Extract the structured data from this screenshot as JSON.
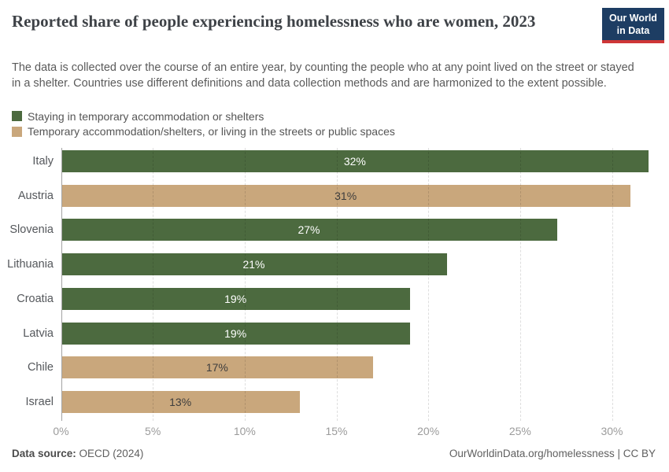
{
  "header": {
    "logo": {
      "line1": "Our World",
      "line2": "in Data"
    }
  },
  "chart_data": {
    "type": "bar",
    "orientation": "horizontal",
    "title": "Reported share of people experiencing homelessness who are women, 2023",
    "subtitle": "The data is collected over the course of an entire year, by counting the people who at any point lived on the street or stayed in a shelter. Countries use different definitions and data collection methods and are harmonized to the extent possible.",
    "unit": "%",
    "legend_position": "top-left",
    "legend": [
      {
        "label": "Staying in temporary accommodation or shelters",
        "color": "#4C6A3F",
        "value_label_color": "#FFFFFF"
      },
      {
        "label": "Temporary accommodation/shelters, or living in the streets or public spaces",
        "color": "#C9A77C",
        "value_label_color": "#3D3D3D"
      }
    ],
    "bars": [
      {
        "country": "Italy",
        "value": 32,
        "label": "32%",
        "series": 0
      },
      {
        "country": "Austria",
        "value": 31,
        "label": "31%",
        "series": 1
      },
      {
        "country": "Slovenia",
        "value": 27,
        "label": "27%",
        "series": 0
      },
      {
        "country": "Lithuania",
        "value": 21,
        "label": "21%",
        "series": 0
      },
      {
        "country": "Croatia",
        "value": 19,
        "label": "19%",
        "series": 0
      },
      {
        "country": "Latvia",
        "value": 19,
        "label": "19%",
        "series": 0
      },
      {
        "country": "Chile",
        "value": 17,
        "label": "17%",
        "series": 1
      },
      {
        "country": "Israel",
        "value": 13,
        "label": "13%",
        "series": 1
      }
    ],
    "x_axis": {
      "min": 0,
      "max": 32.85,
      "ticks": [
        0,
        5,
        10,
        15,
        20,
        25,
        30
      ],
      "tick_labels": [
        "0%",
        "5%",
        "10%",
        "15%",
        "20%",
        "25%",
        "30%"
      ],
      "gridlines": "dashed-vertical"
    }
  },
  "footer": {
    "datasource_label": "Data source:",
    "datasource_value": "OECD (2024)",
    "credit_url": "OurWorldinData.org/homelessness",
    "credit_suffix": " | CC BY"
  },
  "colors": {
    "green": "#4C6A3F",
    "tan": "#C9A77C",
    "logo_navy": "#1D3D63",
    "logo_red": "#CE3637",
    "axis_line": "#A3A3A3",
    "gridline": "#DDDDDD",
    "title_text": "#3E4247",
    "subtitle_text": "#5A5A5A",
    "tick_text": "#9B9B9B"
  }
}
